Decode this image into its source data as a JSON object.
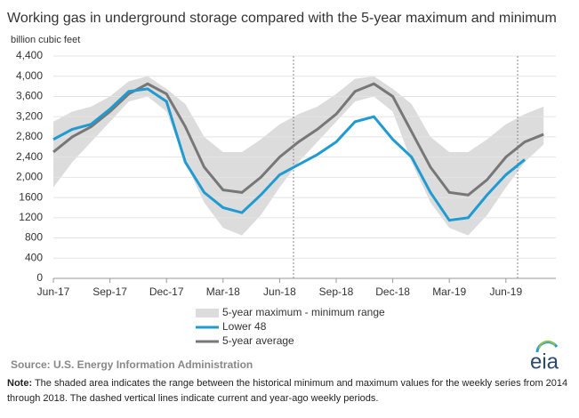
{
  "chart_data": {
    "type": "line",
    "title": "Working gas in underground  storage compared with the 5-year maximum and minimum",
    "y_label": "billion cubic feet",
    "categories": [
      "Jun-17",
      null,
      null,
      "Sep-17",
      null,
      null,
      "Dec-17",
      null,
      null,
      "Mar-18",
      null,
      null,
      "Jun-18",
      null,
      null,
      "Sep-18",
      null,
      null,
      "Dec-18",
      null,
      null,
      "Mar-19",
      null,
      null,
      "Jun-19",
      null,
      null
    ],
    "band": {
      "name": "5-year maximum - minimum range",
      "color": "#dcdcdc",
      "max": [
        3100,
        3300,
        3400,
        3600,
        3900,
        4000,
        3750,
        3450,
        2800,
        2500,
        2500,
        2750,
        3050,
        3250,
        3400,
        3650,
        3950,
        4000,
        3750,
        3450,
        2800,
        2500,
        2500,
        2750,
        3050,
        3250,
        3400
      ],
      "min": [
        1800,
        2300,
        2700,
        3100,
        3500,
        3600,
        3300,
        2300,
        1500,
        1000,
        850,
        1250,
        1800,
        2300,
        2700,
        3100,
        3500,
        3600,
        3300,
        2300,
        1500,
        1000,
        850,
        1250,
        1800,
        2300,
        2650
      ]
    },
    "series": [
      {
        "name": "Lower 48",
        "color": "#1f9bd1",
        "values": [
          2750,
          2950,
          3050,
          3350,
          3700,
          3750,
          3500,
          2300,
          1700,
          1400,
          1300,
          1650,
          2050,
          2250,
          2450,
          2700,
          3100,
          3200,
          2750,
          2400,
          1700,
          1150,
          1200,
          1650,
          2050,
          2350,
          null
        ]
      },
      {
        "name": "5-year average",
        "color": "#777777",
        "values": [
          2500,
          2800,
          3000,
          3300,
          3650,
          3850,
          3650,
          3000,
          2200,
          1750,
          1700,
          2000,
          2400,
          2700,
          2950,
          3250,
          3700,
          3850,
          3600,
          2900,
          2200,
          1700,
          1650,
          1950,
          2400,
          2700,
          2850
        ]
      }
    ],
    "ylim": [
      0,
      4400
    ],
    "yticks": [
      0,
      400,
      800,
      1200,
      1600,
      {
        "value": 2000,
        "label": "2,000"
      },
      {
        "value": 2400,
        "label": "2,400"
      },
      {
        "value": 2800,
        "label": "2,800"
      },
      {
        "value": 3200,
        "label": "3,200"
      },
      {
        "value": 3600,
        "label": "3,600"
      },
      {
        "value": 4000,
        "label": "4,000"
      },
      {
        "value": 4400,
        "label": "4,400"
      }
    ],
    "grid": true,
    "source": "Source:  U.S. Energy Information Administration",
    "note_label": "Note:",
    "note": " The shaded area indicates the range between the historical minimum and maximum values for the weekly series from 2014 through 2018. The dashed vertical lines indicate current and year-ago weekly periods.",
    "logo": "eia"
  }
}
